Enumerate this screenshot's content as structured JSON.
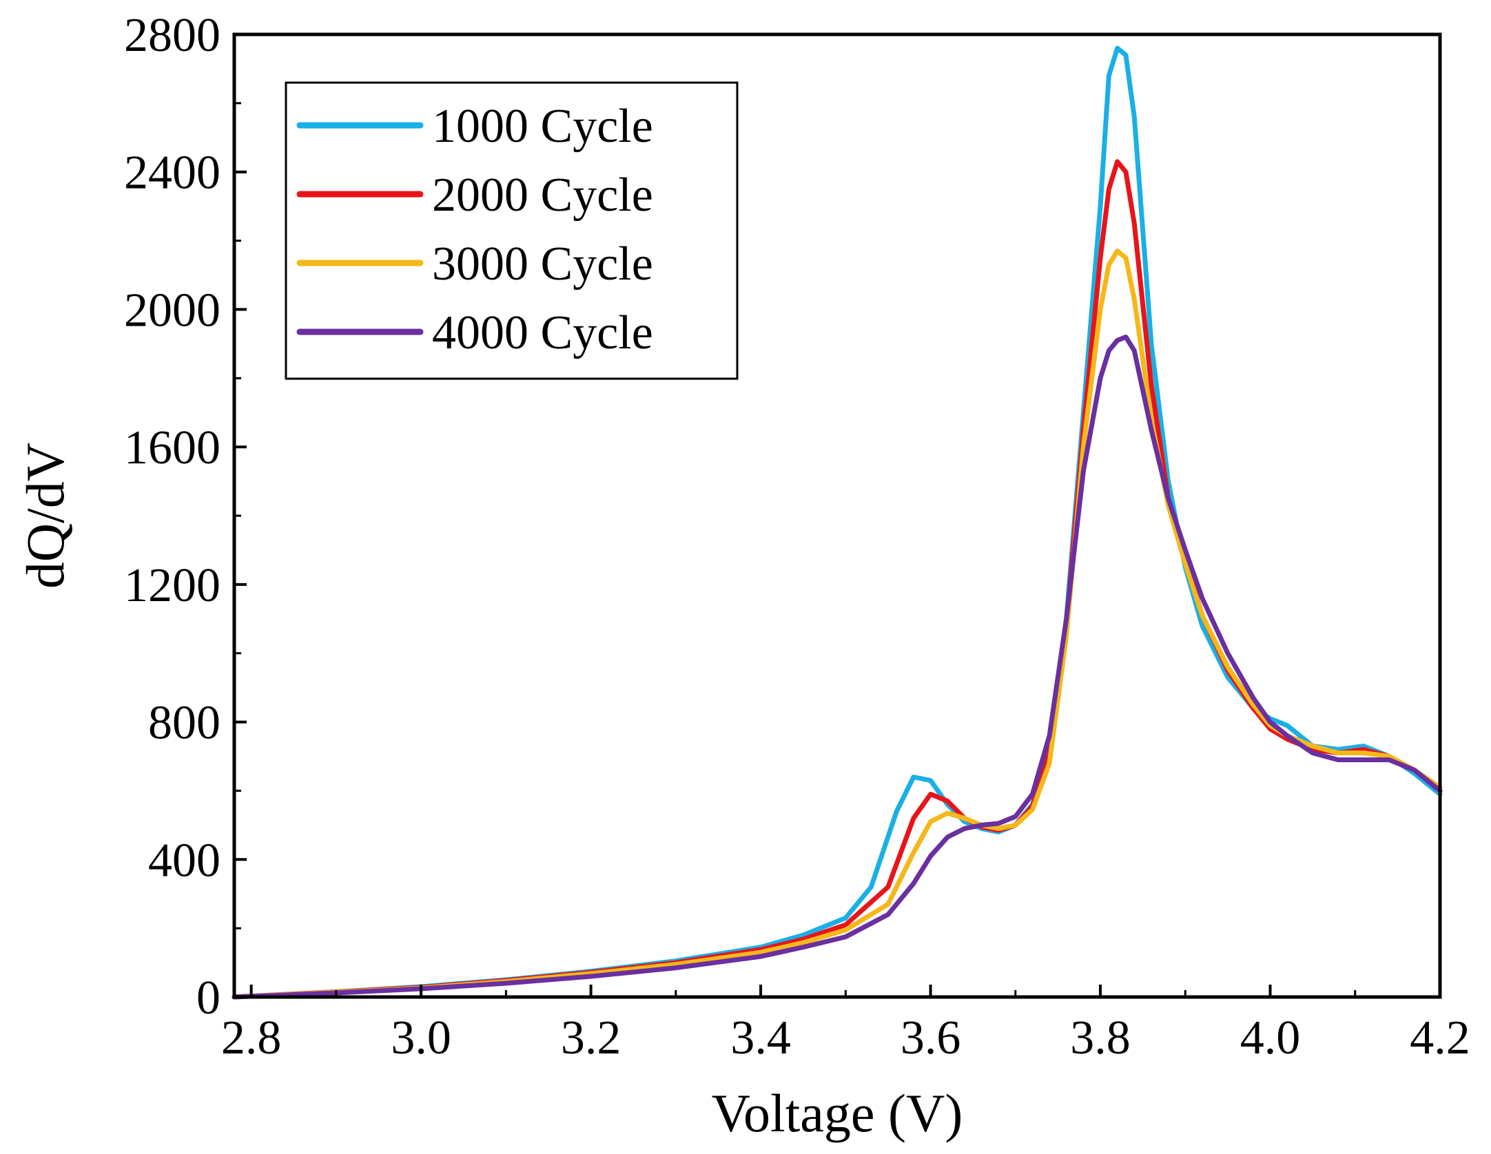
{
  "chart_data": {
    "type": "line",
    "title": "",
    "xlabel": "Voltage (V)",
    "ylabel": "dQ/dV",
    "xlim": [
      2.78,
      4.2
    ],
    "ylim": [
      0,
      2800
    ],
    "xticks": [
      2.8,
      3.0,
      3.2,
      3.4,
      3.6,
      3.8,
      4.0,
      4.2
    ],
    "xtick_labels": [
      "2.8",
      "3.0",
      "3.2",
      "3.4",
      "3.6",
      "3.8",
      "4.0",
      "4.2"
    ],
    "yticks": [
      0,
      400,
      800,
      1200,
      1600,
      2000,
      2400,
      2800
    ],
    "ytick_labels": [
      "0",
      "400",
      "800",
      "1200",
      "1600",
      "2000",
      "2400",
      "2800"
    ],
    "grid": false,
    "legend_position": "top-left",
    "series": [
      {
        "name": "1000 Cycle",
        "color": "#1aafe6",
        "x": [
          2.78,
          2.9,
          3.0,
          3.1,
          3.2,
          3.3,
          3.4,
          3.45,
          3.5,
          3.53,
          3.56,
          3.58,
          3.6,
          3.62,
          3.64,
          3.66,
          3.68,
          3.7,
          3.72,
          3.74,
          3.76,
          3.78,
          3.8,
          3.81,
          3.82,
          3.83,
          3.84,
          3.86,
          3.88,
          3.9,
          3.92,
          3.95,
          3.98,
          4.0,
          4.02,
          4.05,
          4.08,
          4.11,
          4.14,
          4.17,
          4.2
        ],
        "y": [
          0,
          15,
          30,
          50,
          75,
          105,
          145,
          180,
          230,
          320,
          540,
          640,
          630,
          560,
          510,
          490,
          480,
          500,
          560,
          720,
          1100,
          1700,
          2300,
          2680,
          2760,
          2740,
          2560,
          1900,
          1500,
          1250,
          1080,
          930,
          840,
          810,
          790,
          730,
          720,
          730,
          700,
          650,
          590
        ]
      },
      {
        "name": "2000 Cycle",
        "color": "#e8141a",
        "x": [
          2.78,
          2.9,
          3.0,
          3.1,
          3.2,
          3.3,
          3.4,
          3.45,
          3.5,
          3.55,
          3.58,
          3.6,
          3.62,
          3.64,
          3.66,
          3.68,
          3.7,
          3.72,
          3.74,
          3.76,
          3.78,
          3.8,
          3.81,
          3.82,
          3.83,
          3.84,
          3.86,
          3.88,
          3.9,
          3.92,
          3.95,
          3.98,
          4.0,
          4.02,
          4.05,
          4.08,
          4.11,
          4.14,
          4.17,
          4.2
        ],
        "y": [
          0,
          15,
          28,
          48,
          72,
          100,
          138,
          168,
          210,
          320,
          520,
          590,
          570,
          520,
          495,
          485,
          500,
          555,
          710,
          1080,
          1650,
          2150,
          2350,
          2430,
          2400,
          2250,
          1780,
          1450,
          1270,
          1110,
          950,
          840,
          780,
          750,
          720,
          710,
          720,
          700,
          660,
          600
        ]
      },
      {
        "name": "3000 Cycle",
        "color": "#f5b81a",
        "x": [
          2.78,
          2.9,
          3.0,
          3.1,
          3.2,
          3.3,
          3.4,
          3.45,
          3.5,
          3.55,
          3.58,
          3.6,
          3.62,
          3.64,
          3.66,
          3.68,
          3.7,
          3.72,
          3.74,
          3.76,
          3.78,
          3.8,
          3.81,
          3.82,
          3.83,
          3.84,
          3.86,
          3.88,
          3.9,
          3.92,
          3.95,
          3.98,
          4.0,
          4.02,
          4.05,
          4.08,
          4.11,
          4.14,
          4.17,
          4.2
        ],
        "y": [
          0,
          14,
          26,
          45,
          68,
          95,
          130,
          158,
          195,
          270,
          420,
          510,
          535,
          520,
          500,
          490,
          500,
          545,
          680,
          1050,
          1600,
          2000,
          2130,
          2170,
          2150,
          2030,
          1680,
          1430,
          1260,
          1110,
          960,
          850,
          790,
          760,
          730,
          710,
          710,
          700,
          660,
          610
        ]
      },
      {
        "name": "4000 Cycle",
        "color": "#6a2fa0",
        "x": [
          2.78,
          2.9,
          3.0,
          3.1,
          3.2,
          3.3,
          3.4,
          3.45,
          3.5,
          3.55,
          3.58,
          3.6,
          3.62,
          3.64,
          3.66,
          3.68,
          3.7,
          3.72,
          3.74,
          3.76,
          3.78,
          3.8,
          3.81,
          3.82,
          3.83,
          3.84,
          3.86,
          3.88,
          3.9,
          3.92,
          3.95,
          3.98,
          4.0,
          4.02,
          4.05,
          4.08,
          4.11,
          4.14,
          4.17,
          4.2
        ],
        "y": [
          0,
          12,
          24,
          40,
          60,
          85,
          118,
          145,
          175,
          240,
          330,
          410,
          465,
          490,
          500,
          505,
          525,
          590,
          760,
          1100,
          1530,
          1800,
          1880,
          1910,
          1920,
          1880,
          1650,
          1450,
          1300,
          1160,
          1000,
          870,
          800,
          760,
          710,
          690,
          690,
          690,
          660,
          600
        ]
      }
    ]
  }
}
